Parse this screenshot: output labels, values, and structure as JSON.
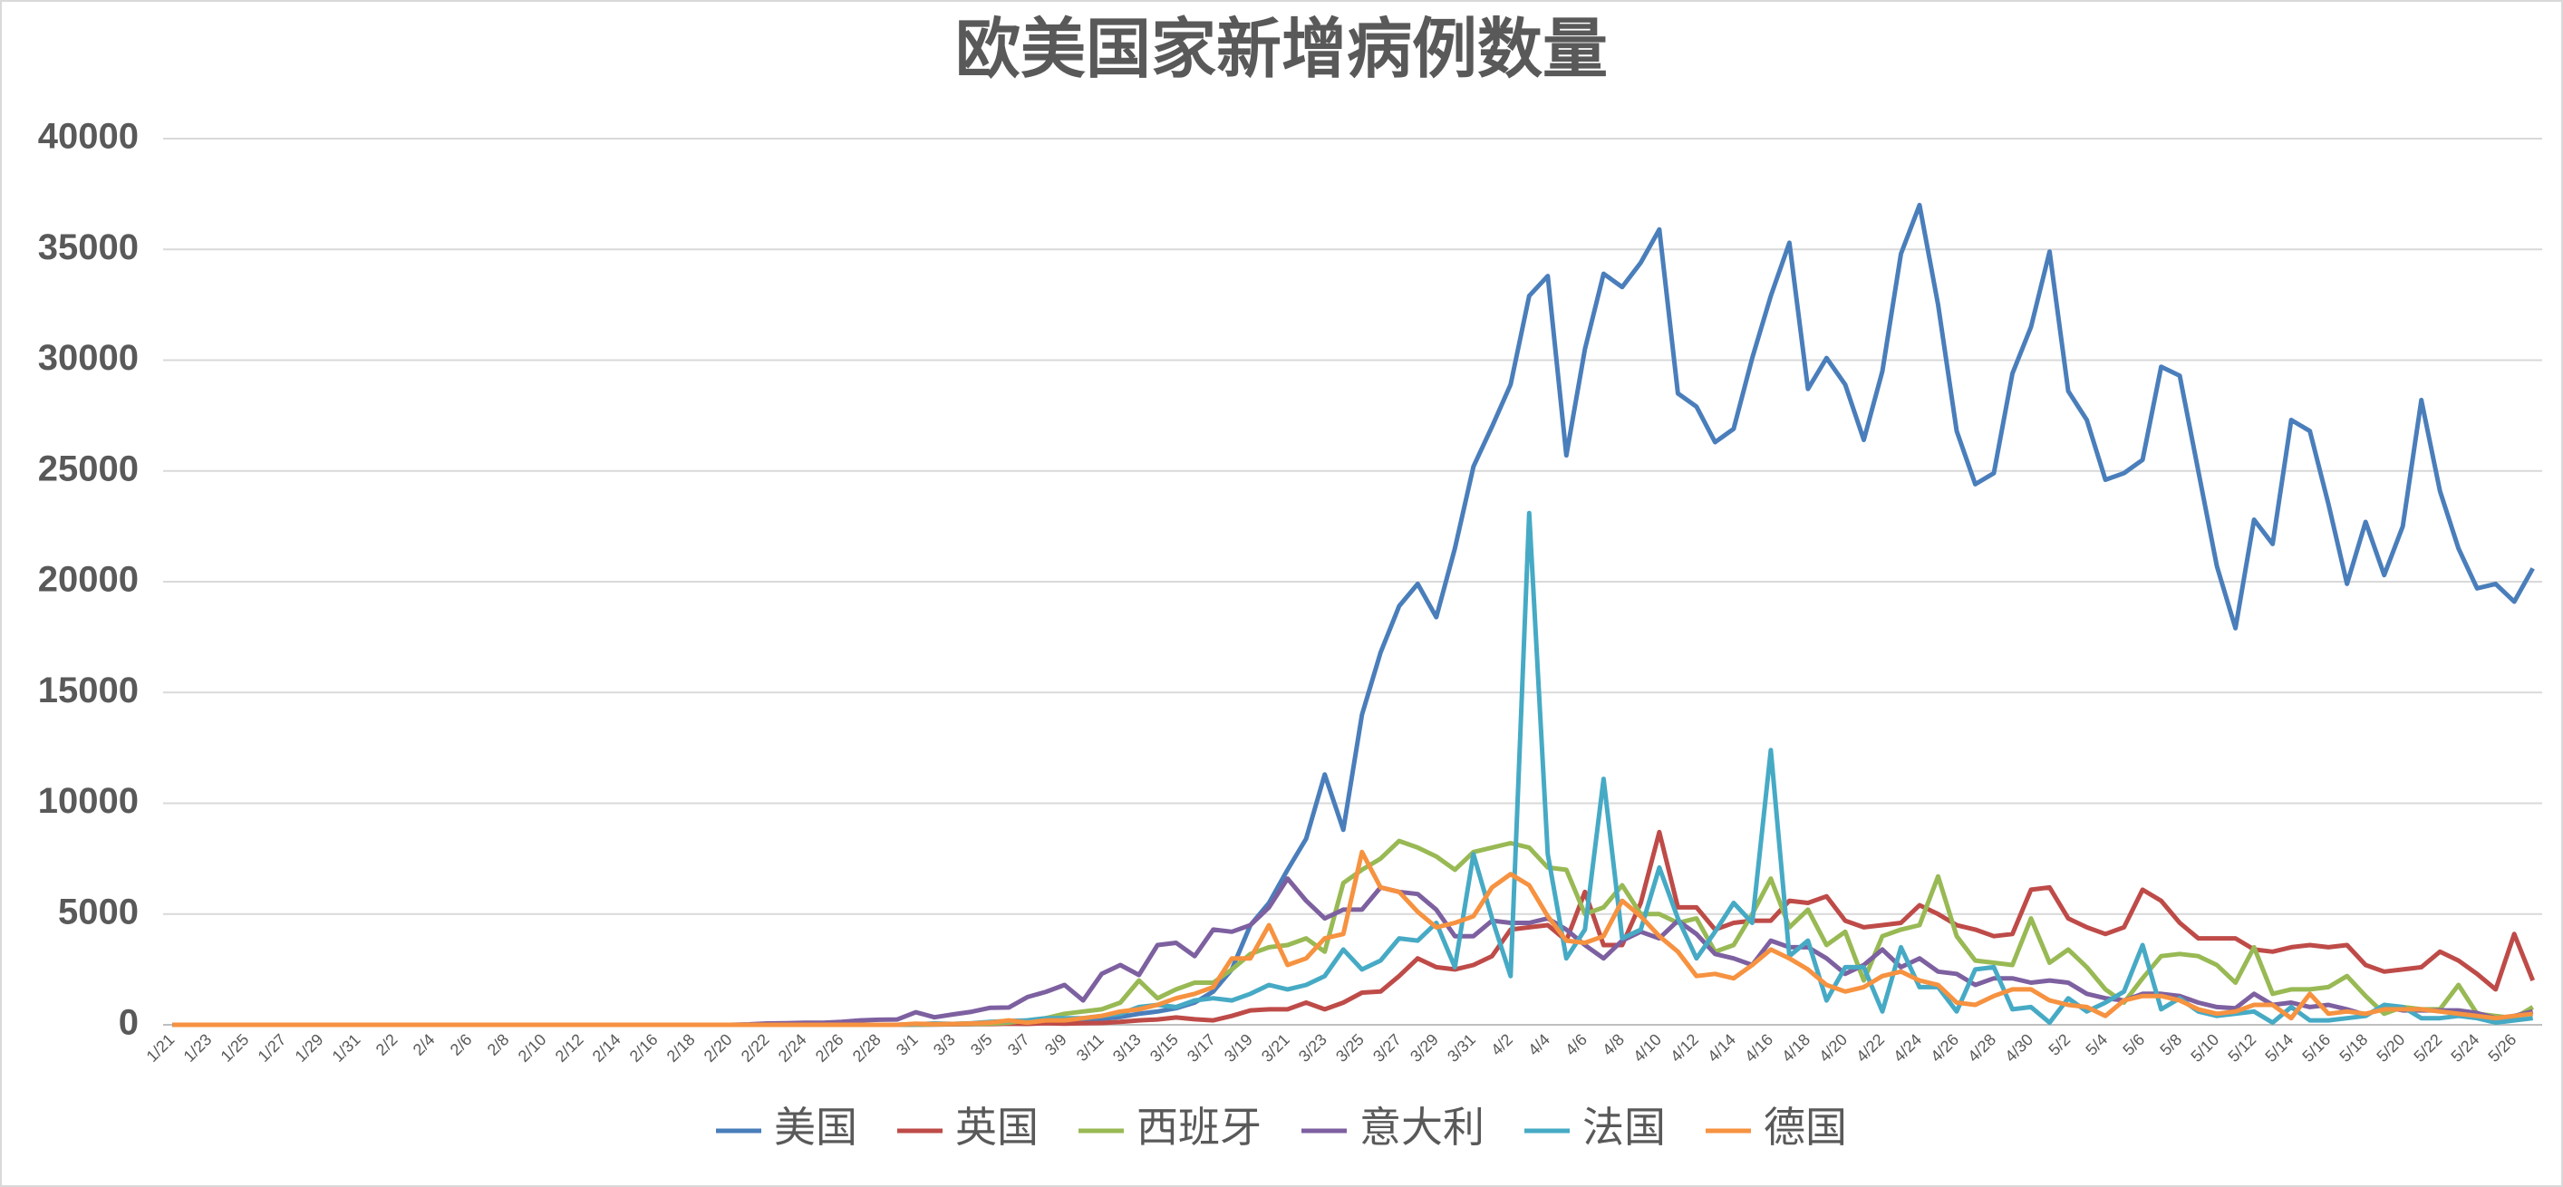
{
  "chart_data": {
    "type": "line",
    "title": "欧美国家新增病例数量",
    "categories": [
      "1/21",
      null,
      "1/23",
      null,
      "1/25",
      null,
      "1/27",
      null,
      "1/29",
      null,
      "1/31",
      null,
      "2/2",
      null,
      "2/4",
      null,
      "2/6",
      null,
      "2/8",
      null,
      "2/10",
      null,
      "2/12",
      null,
      "2/14",
      null,
      "2/16",
      null,
      "2/18",
      null,
      "2/20",
      null,
      "2/22",
      null,
      "2/24",
      null,
      "2/26",
      null,
      "2/28",
      null,
      "3/1",
      null,
      "3/3",
      null,
      "3/5",
      null,
      "3/7",
      null,
      "3/9",
      null,
      "3/11",
      null,
      "3/13",
      null,
      "3/15",
      null,
      "3/17",
      null,
      "3/19",
      null,
      "3/21",
      null,
      "3/23",
      null,
      "3/25",
      null,
      "3/27",
      null,
      "3/29",
      null,
      "3/31",
      null,
      "4/2",
      null,
      "4/4",
      null,
      "4/6",
      null,
      "4/8",
      null,
      "4/10",
      null,
      "4/12",
      null,
      "4/14",
      null,
      "4/16",
      null,
      "4/18",
      null,
      "4/20",
      null,
      "4/22",
      null,
      "4/24",
      null,
      "4/26",
      null,
      "4/28",
      null,
      "4/30",
      null,
      "5/2",
      null,
      "5/4",
      null,
      "5/6",
      null,
      "5/8",
      null,
      "5/10",
      null,
      "5/12",
      null,
      "5/14",
      null,
      "5/16",
      null,
      "5/18",
      null,
      "5/20",
      null,
      "5/22",
      null,
      "5/24",
      null,
      "5/26",
      null
    ],
    "series": [
      {
        "name": "美国",
        "color": "#4a7ebb",
        "values": [
          0,
          0,
          0,
          0,
          0,
          0,
          0,
          0,
          0,
          0,
          0,
          0,
          0,
          0,
          0,
          0,
          0,
          0,
          0,
          0,
          0,
          0,
          0,
          0,
          0,
          0,
          0,
          0,
          0,
          0,
          0,
          0,
          0,
          0,
          0,
          0,
          0,
          0,
          0,
          0,
          10,
          20,
          30,
          30,
          60,
          80,
          100,
          130,
          120,
          200,
          270,
          350,
          500,
          600,
          750,
          1000,
          1500,
          2500,
          4500,
          5500,
          7000,
          8400,
          11300,
          8800,
          14000,
          16800,
          18900,
          19900,
          18400,
          21500,
          25200,
          27000,
          28900,
          32900,
          33800,
          25700,
          30500,
          33900,
          33300,
          34400,
          35900,
          28500,
          27900,
          26300,
          26900,
          30100,
          32900,
          35300,
          28700,
          30100,
          28900,
          26400,
          29500,
          34800,
          37000,
          32500,
          26800,
          24400,
          24900,
          29400,
          31500,
          34900,
          28600,
          27300,
          24600,
          24900,
          25500,
          29700,
          29300,
          25000,
          20700,
          17900,
          22800,
          21700,
          27300,
          26800,
          23500,
          19900,
          22700,
          20300,
          22500,
          28200,
          24100,
          21500,
          19700,
          19900,
          19100,
          20600
        ]
      },
      {
        "name": "英国",
        "color": "#be4b48",
        "values": [
          0,
          0,
          0,
          0,
          0,
          0,
          0,
          0,
          0,
          0,
          0,
          0,
          0,
          0,
          0,
          0,
          0,
          0,
          0,
          0,
          0,
          0,
          0,
          0,
          0,
          0,
          0,
          0,
          0,
          0,
          0,
          0,
          0,
          0,
          0,
          0,
          0,
          0,
          0,
          0,
          10,
          10,
          20,
          30,
          30,
          50,
          40,
          70,
          50,
          70,
          80,
          130,
          200,
          240,
          330,
          250,
          200,
          400,
          650,
          700,
          700,
          1000,
          700,
          1000,
          1450,
          1500,
          2200,
          3000,
          2600,
          2500,
          2700,
          3100,
          4300,
          4400,
          4500,
          3800,
          6000,
          3600,
          3600,
          5500,
          8700,
          5300,
          5300,
          4300,
          4600,
          4700,
          4700,
          5600,
          5500,
          5800,
          4700,
          4400,
          4500,
          4600,
          5400,
          5000,
          4500,
          4300,
          4000,
          4100,
          6100,
          6200,
          4800,
          4400,
          4100,
          4400,
          6100,
          5600,
          4600,
          3900,
          3900,
          3900,
          3400,
          3300,
          3500,
          3600,
          3500,
          3600,
          2700,
          2400,
          2500,
          2600,
          3300,
          2900,
          2300,
          1600,
          4100,
          2000
        ]
      },
      {
        "name": "西班牙",
        "color": "#98b954",
        "values": [
          0,
          0,
          0,
          0,
          0,
          0,
          0,
          0,
          0,
          0,
          0,
          0,
          0,
          0,
          0,
          0,
          0,
          0,
          0,
          0,
          0,
          0,
          0,
          0,
          0,
          0,
          0,
          0,
          0,
          0,
          0,
          0,
          0,
          0,
          0,
          0,
          0,
          0,
          0,
          0,
          10,
          20,
          30,
          40,
          50,
          100,
          200,
          300,
          500,
          600,
          700,
          1000,
          2000,
          1200,
          1600,
          1900,
          1900,
          2500,
          3200,
          3500,
          3600,
          3900,
          3300,
          6400,
          7000,
          7500,
          8300,
          8000,
          7600,
          7000,
          7800,
          8000,
          8200,
          8000,
          7100,
          7000,
          5000,
          5300,
          6300,
          5000,
          5000,
          4600,
          4800,
          3300,
          3600,
          5000,
          6600,
          4400,
          5200,
          3600,
          4200,
          2000,
          4000,
          4300,
          4500,
          6700,
          4000,
          2900,
          2800,
          2700,
          4800,
          2800,
          3400,
          2600,
          1600,
          1000,
          2100,
          3100,
          3200,
          3100,
          2700,
          1900,
          3500,
          1400,
          1600,
          1600,
          1700,
          2200,
          1300,
          500,
          800,
          700,
          700,
          1800,
          500,
          400,
          300,
          800
        ]
      },
      {
        "name": "意大利",
        "color": "#7d60a0",
        "values": [
          0,
          0,
          0,
          0,
          0,
          0,
          0,
          0,
          0,
          0,
          0,
          0,
          0,
          0,
          0,
          0,
          0,
          0,
          0,
          0,
          0,
          0,
          0,
          0,
          0,
          0,
          0,
          0,
          0,
          0,
          0,
          20,
          60,
          70,
          90,
          90,
          130,
          200,
          230,
          240,
          570,
          340,
          470,
          590,
          770,
          780,
          1250,
          1490,
          1800,
          1100,
          2300,
          2700,
          2250,
          3600,
          3700,
          3100,
          4300,
          4200,
          4500,
          5300,
          6600,
          5600,
          4800,
          5200,
          5200,
          6200,
          6000,
          5900,
          5200,
          4000,
          4000,
          4700,
          4600,
          4600,
          4800,
          4300,
          3600,
          3000,
          3800,
          4200,
          3900,
          4700,
          4100,
          3200,
          3000,
          2700,
          3800,
          3500,
          3500,
          3000,
          2300,
          2700,
          3400,
          2600,
          3000,
          2400,
          2300,
          1800,
          2100,
          2100,
          1900,
          2000,
          1900,
          1400,
          1200,
          1100,
          1400,
          1400,
          1300,
          1000,
          800,
          750,
          1400,
          900,
          1000,
          800,
          900,
          700,
          450,
          800,
          650,
          650,
          650,
          650,
          530,
          300,
          400,
          600
        ]
      },
      {
        "name": "法国",
        "color": "#46aac5",
        "values": [
          0,
          0,
          0,
          0,
          0,
          0,
          0,
          0,
          0,
          0,
          0,
          0,
          0,
          0,
          0,
          0,
          0,
          0,
          0,
          0,
          0,
          0,
          0,
          0,
          0,
          0,
          0,
          0,
          0,
          0,
          0,
          0,
          0,
          0,
          0,
          0,
          0,
          0,
          0,
          0,
          30,
          60,
          40,
          70,
          130,
          170,
          200,
          300,
          300,
          300,
          400,
          500,
          800,
          900,
          800,
          1100,
          1200,
          1100,
          1400,
          1800,
          1600,
          1800,
          2200,
          3400,
          2500,
          2900,
          3900,
          3800,
          4600,
          2600,
          7700,
          4800,
          2200,
          23100,
          7700,
          3000,
          4300,
          11100,
          3900,
          4300,
          7100,
          4800,
          3000,
          4200,
          5500,
          4600,
          12400,
          3100,
          3800,
          1100,
          2600,
          2600,
          600,
          3500,
          1700,
          1700,
          600,
          2500,
          2600,
          700,
          800,
          100,
          1200,
          600,
          1000,
          1500,
          3600,
          700,
          1200,
          600,
          400,
          500,
          600,
          100,
          800,
          200,
          200,
          300,
          400,
          900,
          800,
          300,
          300,
          400,
          300,
          100,
          200,
          300
        ]
      },
      {
        "name": "德国",
        "color": "#f69240",
        "values": [
          0,
          0,
          0,
          0,
          0,
          0,
          0,
          0,
          0,
          0,
          0,
          0,
          0,
          0,
          0,
          0,
          0,
          0,
          0,
          0,
          0,
          0,
          0,
          0,
          0,
          0,
          0,
          0,
          0,
          0,
          0,
          0,
          0,
          0,
          0,
          0,
          0,
          0,
          0,
          0,
          50,
          30,
          40,
          60,
          100,
          200,
          100,
          200,
          200,
          300,
          400,
          600,
          700,
          900,
          1200,
          1400,
          1700,
          3000,
          3000,
          4500,
          2700,
          3000,
          3900,
          4100,
          7800,
          6200,
          6000,
          5100,
          4400,
          4600,
          4900,
          6200,
          6800,
          6300,
          4900,
          3800,
          3700,
          4000,
          5600,
          4900,
          4000,
          3300,
          2200,
          2300,
          2100,
          2700,
          3400,
          3000,
          2500,
          1800,
          1500,
          1700,
          2200,
          2400,
          2000,
          1800,
          1000,
          900,
          1300,
          1600,
          1600,
          1100,
          900,
          800,
          400,
          1100,
          1300,
          1300,
          1100,
          700,
          500,
          600,
          900,
          900,
          300,
          1400,
          500,
          600,
          500,
          700,
          700,
          700,
          600,
          500,
          400,
          300,
          400,
          500
        ]
      }
    ],
    "ylim": [
      0,
      40000
    ],
    "yticks": [
      0,
      5000,
      10000,
      15000,
      20000,
      25000,
      30000,
      35000,
      40000
    ],
    "grid": true,
    "legend": "bottom"
  }
}
